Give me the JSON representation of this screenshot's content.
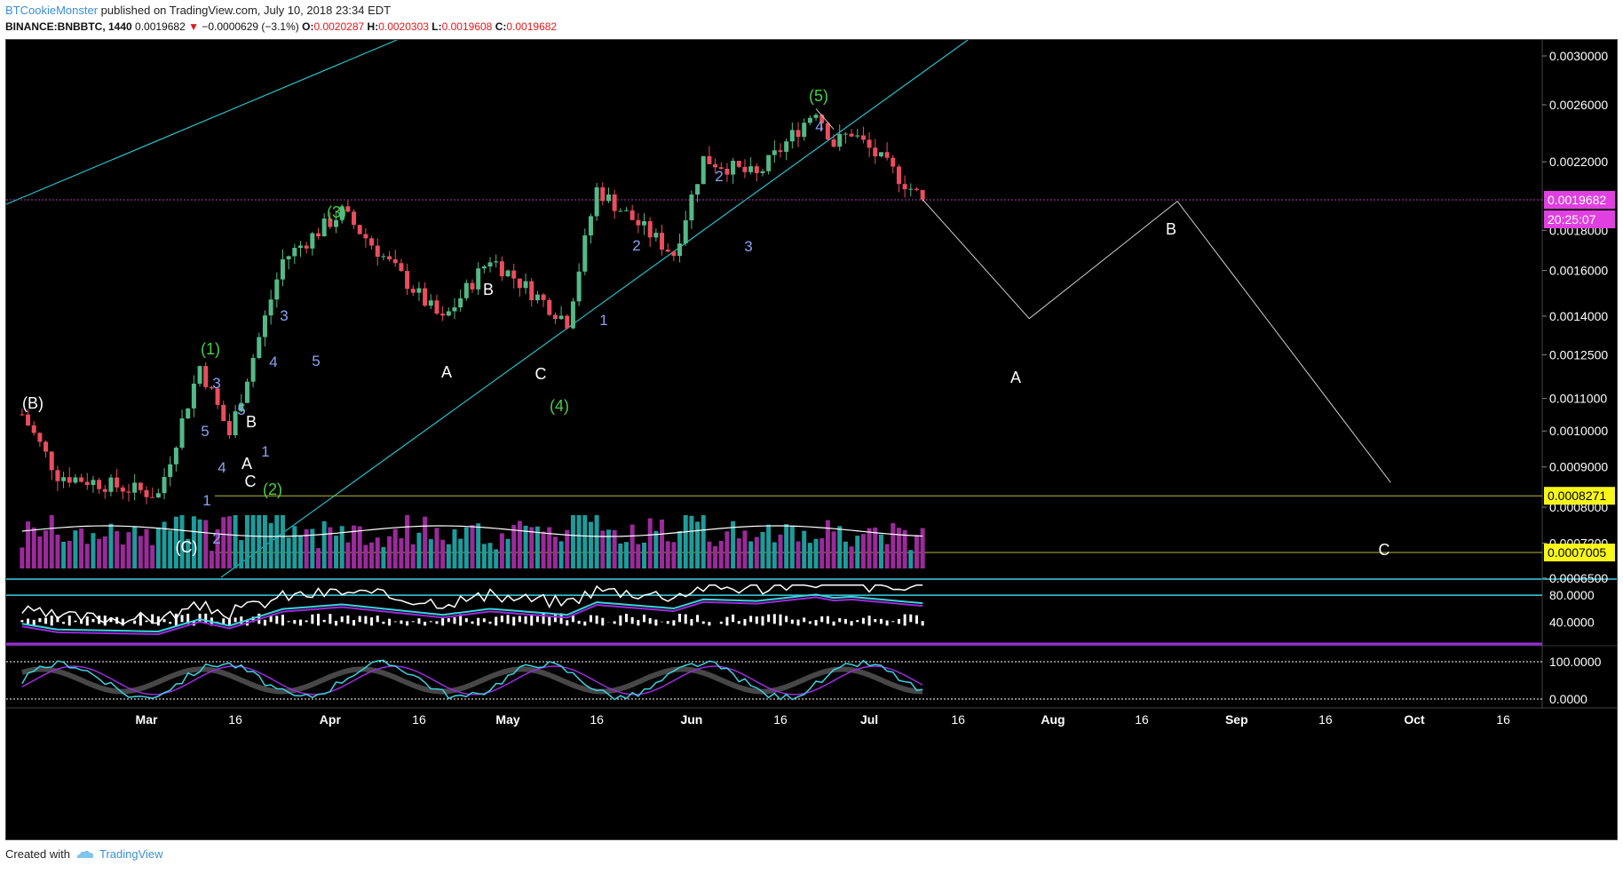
{
  "header": {
    "author": "BTCookieMonster",
    "published_text": "published on TradingView.com, July 10, 2018 23:34 EDT",
    "symbol": "BINANCE:BNBBTC, 1440",
    "last": "0.0019682",
    "change": "−0.0000629 (−3.1%)",
    "o_label": "O:",
    "o": "0.0020287",
    "h_label": "H:",
    "h": "0.0020303",
    "l_label": "L:",
    "l": "0.0019608",
    "c_label": "C:",
    "c": "0.0019682"
  },
  "footer": {
    "created_with": "Created with",
    "brand": "TradingView"
  },
  "colors": {
    "background": "#000000",
    "up": "#53b987",
    "down": "#eb4d5c",
    "trendline": "#27c0c9",
    "wave_green": "#49cf49",
    "wave_blue": "#8aa3f0",
    "wave_white": "#ffffff",
    "price_tag": "#e040e0",
    "level_tag": "#f7f71a"
  },
  "price_axis": {
    "ticks": [
      "0.0030000",
      "0.0026000",
      "0.0022000",
      "0.0018000",
      "0.0016000",
      "0.0014000",
      "0.0012500",
      "0.0011000",
      "0.0010000",
      "0.0009000",
      "0.0008000",
      "0.0007200",
      "0.0006500"
    ],
    "current_price": "0.0019682",
    "countdown": "20:25:07",
    "level_1": "0.0008271",
    "level_2": "0.0007005"
  },
  "indicator_axis": {
    "rsi_ticks": [
      "80.0000",
      "40.0000"
    ],
    "stoch_ticks": [
      "100.0000",
      "0.0000"
    ]
  },
  "time_axis": [
    "Mar",
    "16",
    "Apr",
    "16",
    "May",
    "16",
    "Jun",
    "16",
    "Jul",
    "16",
    "Aug",
    "16",
    "Sep",
    "16",
    "Oct",
    "16"
  ],
  "wave_labels": {
    "green": [
      "(1)",
      "(2)",
      "(3)",
      "(4)",
      "(5)"
    ],
    "blue": [
      "3",
      "5",
      "4",
      "1",
      "2",
      "3",
      "5",
      "4",
      "1",
      "2",
      "1",
      "2",
      "3",
      "4",
      "5"
    ],
    "white": [
      "(B)",
      "(C)",
      "B",
      "A",
      "C",
      "A",
      "B",
      "C",
      "A",
      "B",
      "C"
    ]
  },
  "chart_data": {
    "type": "candlestick",
    "symbol": "BINANCE:BNBBTC",
    "interval": "1440",
    "ohlc_last": {
      "open": 0.0020287,
      "high": 0.0020303,
      "low": 0.0019608,
      "close": 0.0019682
    },
    "price_scale": "log",
    "key_path_closes": [
      {
        "date": "2018-02-08",
        "price": 0.00105
      },
      {
        "date": "2018-02-14",
        "price": 0.00088
      },
      {
        "date": "2018-03-03",
        "price": 0.00083
      },
      {
        "date": "2018-03-10",
        "price": 0.00121
      },
      {
        "date": "2018-03-15",
        "price": 0.00099
      },
      {
        "date": "2018-03-24",
        "price": 0.00165
      },
      {
        "date": "2018-04-03",
        "price": 0.0019
      },
      {
        "date": "2018-04-20",
        "price": 0.00138
      },
      {
        "date": "2018-04-28",
        "price": 0.00166
      },
      {
        "date": "2018-05-11",
        "price": 0.00138
      },
      {
        "date": "2018-05-16",
        "price": 0.00203
      },
      {
        "date": "2018-05-29",
        "price": 0.00168
      },
      {
        "date": "2018-06-03",
        "price": 0.00222
      },
      {
        "date": "2018-06-12",
        "price": 0.00211
      },
      {
        "date": "2018-06-22",
        "price": 0.00257
      },
      {
        "date": "2018-06-25",
        "price": 0.00232
      },
      {
        "date": "2018-06-28",
        "price": 0.0024
      },
      {
        "date": "2018-07-10",
        "price": 0.00197
      }
    ],
    "projection": [
      {
        "label": "",
        "date": "2018-07-10",
        "price": 0.00197
      },
      {
        "label": "A",
        "date": "2018-07-28",
        "price": 0.00139
      },
      {
        "label": "B",
        "date": "2018-08-22",
        "price": 0.00196
      },
      {
        "label": "C",
        "date": "2018-09-27",
        "price": 0.00086
      }
    ],
    "horizontal_levels": [
      0.0019682,
      0.0008271,
      0.0007005
    ],
    "indicators": [
      {
        "name": "RSI-style oscillator",
        "levels": [
          80,
          40
        ]
      },
      {
        "name": "Stochastic-style oscillator",
        "levels": [
          100,
          0
        ]
      }
    ]
  }
}
